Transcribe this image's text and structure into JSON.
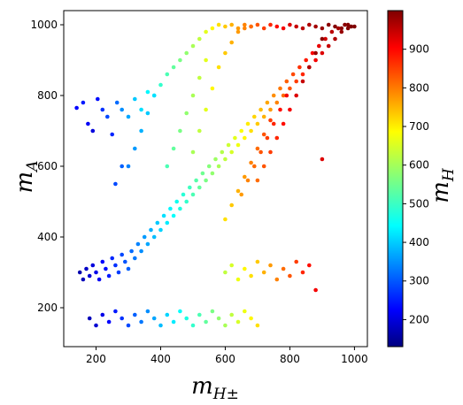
{
  "chart_data": {
    "type": "scatter",
    "title": "",
    "xlabel": "m",
    "xlabel_sub": "H±",
    "ylabel": "m",
    "ylabel_sub": "A",
    "colorbar_label": "m",
    "colorbar_label_sub": "H",
    "xlim": [
      100,
      1040
    ],
    "ylim": [
      90,
      1040
    ],
    "xticks": [
      200,
      400,
      600,
      800,
      1000
    ],
    "yticks": [
      200,
      400,
      600,
      800,
      1000
    ],
    "colorbar": {
      "colormap": "jet",
      "range": [
        130,
        1000
      ],
      "ticks": [
        200,
        300,
        400,
        500,
        600,
        700,
        800,
        900
      ]
    },
    "grid": false,
    "legend": "none",
    "points": [
      [
        140,
        765,
        240
      ],
      [
        160,
        780,
        260
      ],
      [
        175,
        720,
        230
      ],
      [
        190,
        700,
        210
      ],
      [
        205,
        790,
        250
      ],
      [
        220,
        760,
        280
      ],
      [
        235,
        740,
        300
      ],
      [
        250,
        690,
        270
      ],
      [
        265,
        780,
        330
      ],
      [
        280,
        760,
        360
      ],
      [
        300,
        740,
        380
      ],
      [
        320,
        790,
        410
      ],
      [
        340,
        760,
        430
      ],
      [
        360,
        810,
        450
      ],
      [
        380,
        800,
        470
      ],
      [
        400,
        830,
        500
      ],
      [
        420,
        860,
        520
      ],
      [
        440,
        880,
        540
      ],
      [
        460,
        900,
        560
      ],
      [
        480,
        920,
        580
      ],
      [
        500,
        940,
        600
      ],
      [
        520,
        960,
        620
      ],
      [
        540,
        980,
        650
      ],
      [
        560,
        990,
        680
      ],
      [
        580,
        1000,
        700
      ],
      [
        600,
        995,
        720
      ],
      [
        620,
        1000,
        740
      ],
      [
        640,
        990,
        760
      ],
      [
        660,
        1000,
        780
      ],
      [
        680,
        995,
        800
      ],
      [
        700,
        1000,
        820
      ],
      [
        720,
        990,
        840
      ],
      [
        740,
        1000,
        860
      ],
      [
        760,
        995,
        880
      ],
      [
        780,
        990,
        900
      ],
      [
        800,
        1000,
        920
      ],
      [
        820,
        995,
        940
      ],
      [
        840,
        990,
        950
      ],
      [
        860,
        1000,
        960
      ],
      [
        880,
        995,
        970
      ],
      [
        900,
        990,
        980
      ],
      [
        920,
        1000,
        990
      ],
      [
        940,
        995,
        995
      ],
      [
        960,
        990,
        990
      ],
      [
        980,
        1000,
        995
      ],
      [
        1000,
        995,
        1000
      ],
      [
        150,
        300,
        170
      ],
      [
        160,
        280,
        180
      ],
      [
        170,
        310,
        190
      ],
      [
        180,
        290,
        200
      ],
      [
        190,
        320,
        210
      ],
      [
        200,
        300,
        220
      ],
      [
        210,
        280,
        230
      ],
      [
        220,
        330,
        240
      ],
      [
        230,
        310,
        250
      ],
      [
        240,
        290,
        260
      ],
      [
        250,
        340,
        270
      ],
      [
        260,
        320,
        280
      ],
      [
        270,
        300,
        290
      ],
      [
        280,
        350,
        300
      ],
      [
        290,
        330,
        310
      ],
      [
        300,
        310,
        320
      ],
      [
        310,
        360,
        330
      ],
      [
        320,
        340,
        340
      ],
      [
        330,
        380,
        350
      ],
      [
        340,
        360,
        360
      ],
      [
        350,
        400,
        370
      ],
      [
        360,
        380,
        380
      ],
      [
        370,
        420,
        390
      ],
      [
        380,
        400,
        400
      ],
      [
        390,
        440,
        410
      ],
      [
        400,
        420,
        420
      ],
      [
        410,
        460,
        430
      ],
      [
        420,
        440,
        440
      ],
      [
        430,
        480,
        450
      ],
      [
        440,
        460,
        460
      ],
      [
        450,
        500,
        470
      ],
      [
        460,
        480,
        480
      ],
      [
        470,
        520,
        490
      ],
      [
        480,
        500,
        500
      ],
      [
        490,
        540,
        510
      ],
      [
        500,
        520,
        520
      ],
      [
        510,
        560,
        530
      ],
      [
        520,
        540,
        540
      ],
      [
        530,
        580,
        550
      ],
      [
        540,
        560,
        560
      ],
      [
        550,
        600,
        570
      ],
      [
        560,
        580,
        580
      ],
      [
        570,
        620,
        590
      ],
      [
        580,
        600,
        600
      ],
      [
        590,
        640,
        610
      ],
      [
        600,
        620,
        620
      ],
      [
        610,
        660,
        630
      ],
      [
        620,
        640,
        640
      ],
      [
        630,
        680,
        650
      ],
      [
        640,
        660,
        660
      ],
      [
        650,
        700,
        670
      ],
      [
        660,
        680,
        680
      ],
      [
        670,
        720,
        690
      ],
      [
        680,
        700,
        700
      ],
      [
        690,
        740,
        710
      ],
      [
        700,
        720,
        720
      ],
      [
        710,
        760,
        730
      ],
      [
        720,
        740,
        740
      ],
      [
        730,
        780,
        750
      ],
      [
        740,
        760,
        760
      ],
      [
        750,
        800,
        770
      ],
      [
        760,
        780,
        780
      ],
      [
        770,
        820,
        790
      ],
      [
        780,
        800,
        800
      ],
      [
        790,
        840,
        810
      ],
      [
        800,
        820,
        820
      ],
      [
        810,
        860,
        830
      ],
      [
        820,
        840,
        840
      ],
      [
        830,
        880,
        850
      ],
      [
        840,
        860,
        860
      ],
      [
        850,
        900,
        870
      ],
      [
        860,
        880,
        880
      ],
      [
        870,
        920,
        890
      ],
      [
        880,
        900,
        900
      ],
      [
        890,
        940,
        910
      ],
      [
        900,
        920,
        920
      ],
      [
        910,
        960,
        930
      ],
      [
        920,
        940,
        940
      ],
      [
        930,
        980,
        950
      ],
      [
        940,
        960,
        960
      ],
      [
        950,
        990,
        970
      ],
      [
        960,
        980,
        980
      ],
      [
        970,
        1000,
        990
      ],
      [
        980,
        990,
        995
      ],
      [
        990,
        995,
        1000
      ],
      [
        180,
        170,
        180
      ],
      [
        200,
        150,
        200
      ],
      [
        220,
        180,
        220
      ],
      [
        240,
        160,
        240
      ],
      [
        260,
        190,
        260
      ],
      [
        280,
        170,
        280
      ],
      [
        300,
        150,
        300
      ],
      [
        320,
        180,
        320
      ],
      [
        340,
        160,
        340
      ],
      [
        360,
        190,
        360
      ],
      [
        380,
        170,
        380
      ],
      [
        400,
        150,
        400
      ],
      [
        420,
        180,
        420
      ],
      [
        440,
        160,
        440
      ],
      [
        460,
        190,
        460
      ],
      [
        480,
        170,
        480
      ],
      [
        500,
        150,
        500
      ],
      [
        520,
        180,
        520
      ],
      [
        540,
        160,
        540
      ],
      [
        560,
        190,
        560
      ],
      [
        580,
        170,
        580
      ],
      [
        600,
        150,
        600
      ],
      [
        620,
        180,
        620
      ],
      [
        640,
        160,
        640
      ],
      [
        660,
        190,
        660
      ],
      [
        680,
        170,
        680
      ],
      [
        700,
        150,
        700
      ],
      [
        600,
        300,
        620
      ],
      [
        620,
        320,
        640
      ],
      [
        640,
        280,
        660
      ],
      [
        660,
        310,
        680
      ],
      [
        680,
        290,
        700
      ],
      [
        700,
        330,
        720
      ],
      [
        720,
        300,
        740
      ],
      [
        740,
        320,
        760
      ],
      [
        760,
        280,
        780
      ],
      [
        780,
        310,
        800
      ],
      [
        800,
        290,
        820
      ],
      [
        820,
        330,
        840
      ],
      [
        840,
        300,
        860
      ],
      [
        860,
        320,
        880
      ],
      [
        880,
        250,
        900
      ],
      [
        900,
        620,
        920
      ],
      [
        500,
        640,
        600
      ],
      [
        520,
        700,
        620
      ],
      [
        540,
        760,
        650
      ],
      [
        560,
        820,
        680
      ],
      [
        580,
        880,
        700
      ],
      [
        600,
        920,
        720
      ],
      [
        620,
        950,
        740
      ],
      [
        640,
        980,
        760
      ],
      [
        660,
        990,
        780
      ],
      [
        680,
        995,
        800
      ],
      [
        420,
        600,
        520
      ],
      [
        440,
        650,
        540
      ],
      [
        460,
        700,
        560
      ],
      [
        480,
        750,
        580
      ],
      [
        500,
        800,
        600
      ],
      [
        520,
        850,
        620
      ],
      [
        540,
        900,
        650
      ],
      [
        300,
        600,
        350
      ],
      [
        320,
        650,
        370
      ],
      [
        340,
        700,
        390
      ],
      [
        360,
        750,
        410
      ],
      [
        380,
        800,
        430
      ],
      [
        260,
        550,
        300
      ],
      [
        280,
        600,
        320
      ],
      [
        700,
        560,
        800
      ],
      [
        720,
        600,
        820
      ],
      [
        740,
        640,
        840
      ],
      [
        760,
        680,
        860
      ],
      [
        780,
        720,
        880
      ],
      [
        800,
        760,
        900
      ],
      [
        820,
        800,
        920
      ],
      [
        840,
        840,
        940
      ],
      [
        860,
        880,
        960
      ],
      [
        880,
        920,
        980
      ],
      [
        900,
        960,
        990
      ],
      [
        650,
        520,
        760
      ],
      [
        670,
        560,
        780
      ],
      [
        690,
        600,
        800
      ],
      [
        710,
        640,
        820
      ],
      [
        730,
        680,
        840
      ],
      [
        750,
        720,
        860
      ],
      [
        770,
        760,
        880
      ],
      [
        790,
        800,
        900
      ],
      [
        600,
        450,
        700
      ],
      [
        620,
        490,
        720
      ],
      [
        640,
        530,
        740
      ],
      [
        660,
        570,
        760
      ],
      [
        680,
        610,
        780
      ],
      [
        700,
        650,
        800
      ],
      [
        720,
        690,
        820
      ],
      [
        740,
        730,
        840
      ]
    ]
  }
}
